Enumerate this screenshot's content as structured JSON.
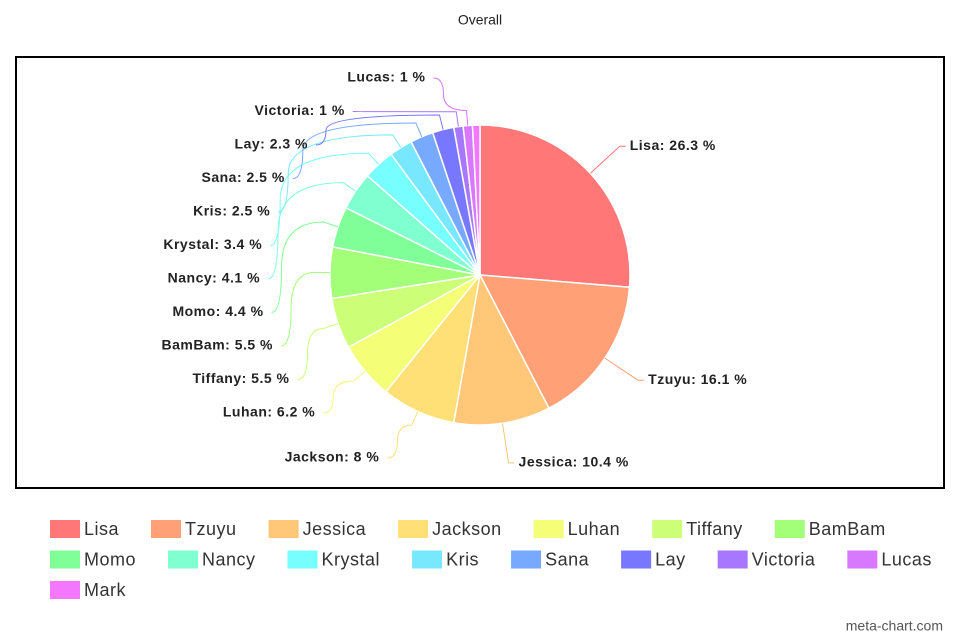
{
  "chart_data": {
    "type": "pie",
    "title": "Overall",
    "watermark": "meta-chart.com",
    "categories": [
      "Lisa",
      "Tzuyu",
      "Jessica",
      "Jackson",
      "Luhan",
      "Tiffany",
      "BamBam",
      "Momo",
      "Nancy",
      "Krystal",
      "Kris",
      "Sana",
      "Lay",
      "Victoria",
      "Lucas",
      "Mark"
    ],
    "values": [
      26.3,
      16.1,
      10.4,
      8,
      6.2,
      5.5,
      5.5,
      4.4,
      4.1,
      3.4,
      2.5,
      2.5,
      2.3,
      1,
      1,
      0.8
    ],
    "value_labels": [
      "Lisa: 26.3 %",
      "Tzuyu: 16.1 %",
      "Jessica: 10.4 %",
      "Jackson: 8 %",
      "Luhan: 6.2 %",
      "Tiffany: 5.5 %",
      "BamBam: 5.5 %",
      "Momo: 4.4 %",
      "Nancy: 4.1 %",
      "Krystal: 3.4 %",
      "Kris: 2.5 %",
      "Sana: 2.5 %",
      "Lay: 2.3 %",
      "Victoria: 1 %",
      "Lucas: 1 %",
      null
    ],
    "colors": [
      "#ff7777",
      "#ffa077",
      "#ffc777",
      "#ffe077",
      "#f4ff77",
      "#ccff77",
      "#a2ff77",
      "#80ff99",
      "#80ffd0",
      "#77ffff",
      "#77e8ff",
      "#77aaff",
      "#7777ff",
      "#a877ff",
      "#d877ff",
      "#f477ff"
    ],
    "legend": "bottom"
  }
}
